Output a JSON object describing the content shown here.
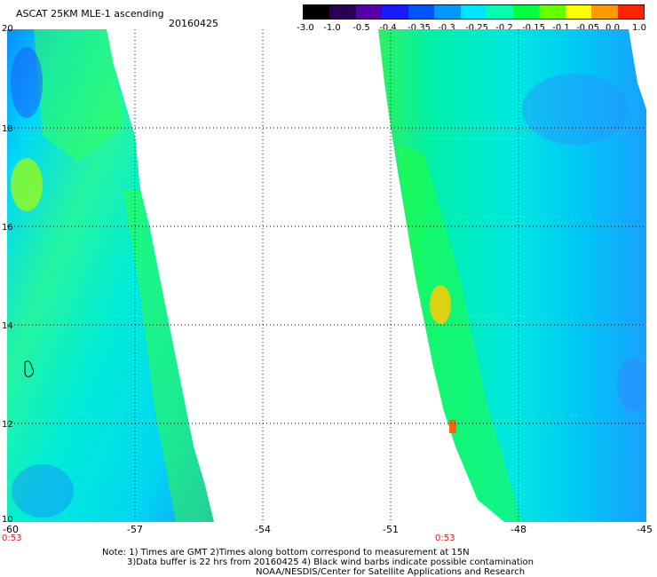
{
  "header": {
    "title": "ASCAT 25KM MLE-1 ascending",
    "date": "20160425"
  },
  "colorbar": {
    "ticks": [
      "-3.0",
      "-1.0",
      "-0.5",
      "-0.4",
      "-0.35",
      "-0.3",
      "-0.25",
      "-0.2",
      "-0.15",
      "-0.1",
      "-0.05",
      "0.0",
      "1.0"
    ],
    "colors": [
      "#000000",
      "#2a0055",
      "#5500aa",
      "#1a1aff",
      "#0055ff",
      "#0099ff",
      "#00e5ff",
      "#00ffb0",
      "#00ff40",
      "#66ff00",
      "#ffff00",
      "#ff9900",
      "#ff2200"
    ]
  },
  "map": {
    "lat_labels": [
      "20",
      "18",
      "16",
      "14",
      "12",
      "10"
    ],
    "lon_labels": [
      "-60",
      "-57",
      "-54",
      "-51",
      "-48",
      "-45"
    ],
    "time_labels": [
      "0:53",
      "0:53"
    ]
  },
  "footer": {
    "line1": "Note: 1) Times are GMT 2)Times along bottom correspond to measurement at 15N",
    "line2": "3)Data buffer is 22 hrs from 20160425 4) Black wind barbs indicate possible contamination",
    "line3": "NOAA/NESDIS/Center for Satellite Applications and Research"
  }
}
